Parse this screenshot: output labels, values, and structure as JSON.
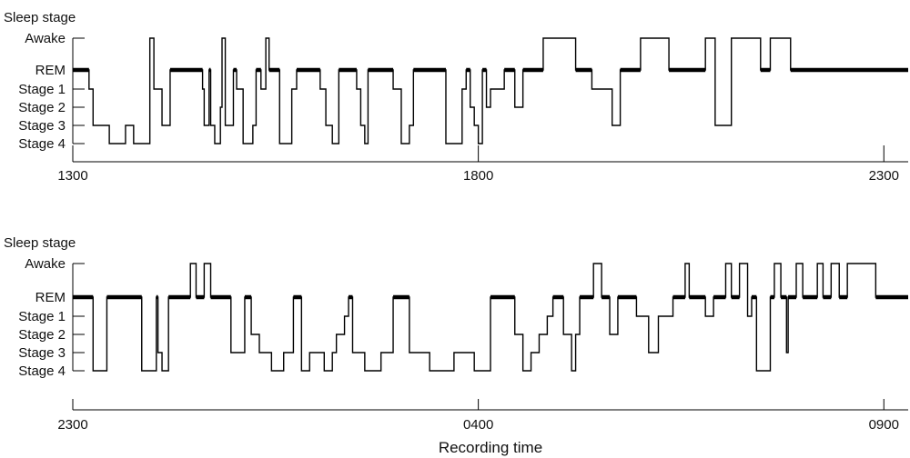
{
  "chart_data": [
    {
      "type": "line",
      "ylabel": "Sleep stage",
      "y_ticks": [
        "Awake",
        "REM",
        "Stage 1",
        "Stage 2",
        "Stage 3",
        "Stage 4"
      ],
      "x_tick_labels": [
        "1300",
        "1800",
        "2300"
      ],
      "x_tick_hours": [
        0,
        5,
        10
      ],
      "xlim_hours": [
        0,
        10.3
      ],
      "xlabel": "",
      "series": [
        {
          "steps": [
            [
              0,
              "REM"
            ],
            [
              0.2,
              "Stage 1"
            ],
            [
              0.25,
              "Stage 3"
            ],
            [
              0.45,
              "Stage 4"
            ],
            [
              0.65,
              "Stage 3"
            ],
            [
              0.75,
              "Stage 4"
            ],
            [
              0.95,
              "Awake"
            ],
            [
              1.0,
              "Stage 1"
            ],
            [
              1.1,
              "Stage 3"
            ],
            [
              1.2,
              "REM"
            ],
            [
              1.6,
              "Stage 1"
            ],
            [
              1.62,
              "Stage 3"
            ],
            [
              1.68,
              "REM"
            ],
            [
              1.7,
              "Stage 3"
            ],
            [
              1.75,
              "Stage 4"
            ],
            [
              1.82,
              "Stage 2"
            ],
            [
              1.84,
              "Awake"
            ],
            [
              1.88,
              "Stage 3"
            ],
            [
              1.98,
              "REM"
            ],
            [
              2.02,
              "Stage 1"
            ],
            [
              2.1,
              "Stage 4"
            ],
            [
              2.22,
              "Stage 3"
            ],
            [
              2.26,
              "REM"
            ],
            [
              2.32,
              "Stage 1"
            ],
            [
              2.38,
              "Awake"
            ],
            [
              2.42,
              "REM"
            ],
            [
              2.55,
              "Stage 4"
            ],
            [
              2.7,
              "Stage 1"
            ],
            [
              2.76,
              "REM"
            ],
            [
              3.05,
              "Stage 1"
            ],
            [
              3.12,
              "Stage 3"
            ],
            [
              3.2,
              "Stage 4"
            ],
            [
              3.28,
              "REM"
            ],
            [
              3.5,
              "Stage 1"
            ],
            [
              3.55,
              "Stage 3"
            ],
            [
              3.6,
              "Stage 4"
            ],
            [
              3.64,
              "REM"
            ],
            [
              3.95,
              "Stage 1"
            ],
            [
              4.05,
              "Stage 4"
            ],
            [
              4.15,
              "Stage 3"
            ],
            [
              4.2,
              "REM"
            ],
            [
              4.6,
              "Stage 4"
            ],
            [
              4.8,
              "Stage 1"
            ],
            [
              4.85,
              "REM"
            ],
            [
              4.9,
              "Stage 2"
            ],
            [
              4.95,
              "Stage 3"
            ],
            [
              5.0,
              "Stage 4"
            ],
            [
              5.05,
              "REM"
            ],
            [
              5.1,
              "Stage 2"
            ],
            [
              5.15,
              "Stage 1"
            ],
            [
              5.32,
              "REM"
            ],
            [
              5.45,
              "Stage 2"
            ],
            [
              5.55,
              "REM"
            ],
            [
              5.8,
              "Awake"
            ],
            [
              6.2,
              "REM"
            ],
            [
              6.4,
              "Stage 1"
            ],
            [
              6.65,
              "Stage 3"
            ],
            [
              6.75,
              "REM"
            ],
            [
              7.0,
              "Awake"
            ],
            [
              7.35,
              "REM"
            ],
            [
              7.8,
              "Awake"
            ],
            [
              7.92,
              "Stage 3"
            ],
            [
              8.12,
              "Awake"
            ],
            [
              8.48,
              "REM"
            ],
            [
              8.6,
              "Awake"
            ],
            [
              8.85,
              "REM"
            ],
            [
              10.3,
              "REM"
            ]
          ]
        }
      ]
    },
    {
      "type": "line",
      "ylabel": "Sleep stage",
      "y_ticks": [
        "Awake",
        "REM",
        "Stage 1",
        "Stage 2",
        "Stage 3",
        "Stage 4"
      ],
      "x_tick_labels": [
        "2300",
        "0400",
        "0900"
      ],
      "x_tick_hours": [
        0,
        5,
        10
      ],
      "xlim_hours": [
        0,
        10.3
      ],
      "xlabel": "Recording time",
      "series": [
        {
          "steps": [
            [
              0,
              "REM"
            ],
            [
              0.25,
              "Stage 4"
            ],
            [
              0.42,
              "REM"
            ],
            [
              0.85,
              "Stage 4"
            ],
            [
              1.03,
              "REM"
            ],
            [
              1.05,
              "Stage 3"
            ],
            [
              1.1,
              "Stage 4"
            ],
            [
              1.18,
              "REM"
            ],
            [
              1.45,
              "Awake"
            ],
            [
              1.52,
              "REM"
            ],
            [
              1.62,
              "Awake"
            ],
            [
              1.7,
              "REM"
            ],
            [
              1.95,
              "Stage 3"
            ],
            [
              2.12,
              "REM"
            ],
            [
              2.2,
              "Stage 2"
            ],
            [
              2.3,
              "Stage 3"
            ],
            [
              2.45,
              "Stage 4"
            ],
            [
              2.6,
              "Stage 3"
            ],
            [
              2.72,
              "REM"
            ],
            [
              2.82,
              "Stage 4"
            ],
            [
              2.92,
              "Stage 3"
            ],
            [
              3.1,
              "Stage 4"
            ],
            [
              3.2,
              "Stage 3"
            ],
            [
              3.25,
              "Stage 2"
            ],
            [
              3.35,
              "Stage 1"
            ],
            [
              3.4,
              "REM"
            ],
            [
              3.45,
              "Stage 3"
            ],
            [
              3.6,
              "Stage 4"
            ],
            [
              3.8,
              "Stage 3"
            ],
            [
              3.95,
              "REM"
            ],
            [
              4.15,
              "Stage 3"
            ],
            [
              4.4,
              "Stage 4"
            ],
            [
              4.7,
              "Stage 3"
            ],
            [
              4.95,
              "Stage 4"
            ],
            [
              5.15,
              "REM"
            ],
            [
              5.45,
              "Stage 2"
            ],
            [
              5.55,
              "Stage 4"
            ],
            [
              5.65,
              "Stage 3"
            ],
            [
              5.75,
              "Stage 2"
            ],
            [
              5.85,
              "Stage 1"
            ],
            [
              5.92,
              "REM"
            ],
            [
              6.05,
              "Stage 2"
            ],
            [
              6.15,
              "Stage 4"
            ],
            [
              6.2,
              "Stage 2"
            ],
            [
              6.25,
              "REM"
            ],
            [
              6.42,
              "Awake"
            ],
            [
              6.52,
              "REM"
            ],
            [
              6.62,
              "Stage 2"
            ],
            [
              6.72,
              "REM"
            ],
            [
              6.95,
              "Stage 1"
            ],
            [
              7.1,
              "Stage 3"
            ],
            [
              7.22,
              "Stage 1"
            ],
            [
              7.4,
              "REM"
            ],
            [
              7.55,
              "Awake"
            ],
            [
              7.6,
              "REM"
            ],
            [
              7.8,
              "Stage 1"
            ],
            [
              7.9,
              "REM"
            ],
            [
              8.05,
              "Awake"
            ],
            [
              8.12,
              "REM"
            ],
            [
              8.22,
              "Awake"
            ],
            [
              8.32,
              "Stage 1"
            ],
            [
              8.37,
              "REM"
            ],
            [
              8.43,
              "Stage 4"
            ],
            [
              8.6,
              "REM"
            ],
            [
              8.65,
              "Awake"
            ],
            [
              8.73,
              "REM"
            ],
            [
              8.8,
              "Stage 3"
            ],
            [
              8.82,
              "REM"
            ],
            [
              8.92,
              "Awake"
            ],
            [
              9.0,
              "REM"
            ],
            [
              9.18,
              "Awake"
            ],
            [
              9.25,
              "REM"
            ],
            [
              9.35,
              "Awake"
            ],
            [
              9.45,
              "REM"
            ],
            [
              9.55,
              "Awake"
            ],
            [
              9.9,
              "REM"
            ],
            [
              10.3,
              "REM"
            ]
          ]
        }
      ]
    }
  ]
}
